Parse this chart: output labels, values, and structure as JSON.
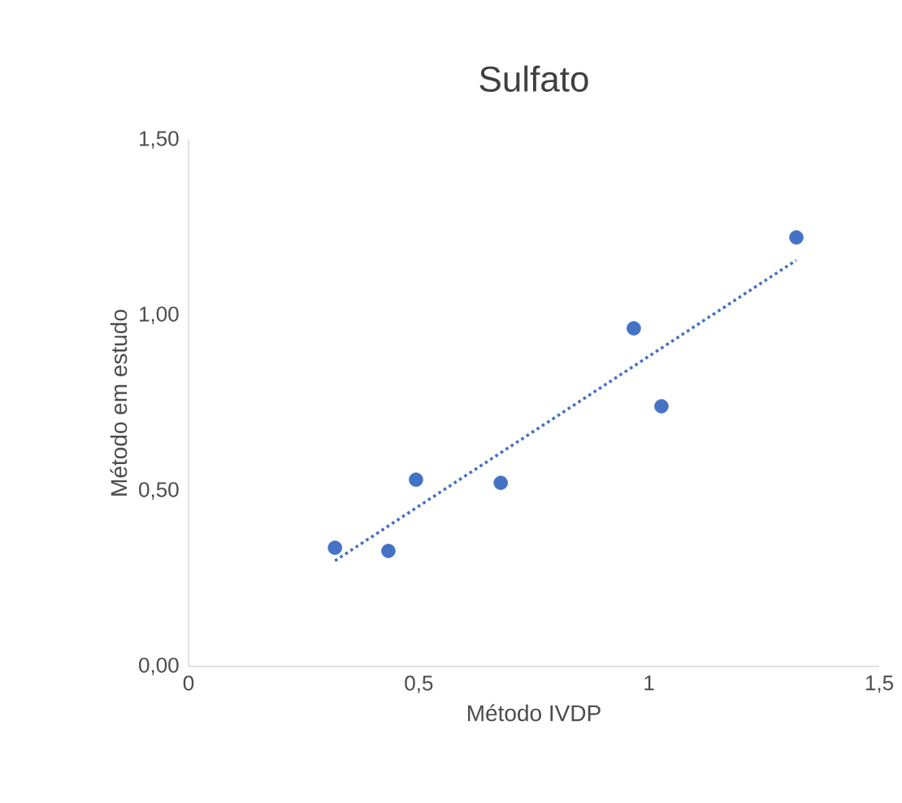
{
  "chart_data": {
    "type": "scatter",
    "title": "Sulfato",
    "xlabel": "Método IVDP",
    "ylabel": "Método em estudo",
    "xlim": [
      0,
      1.5
    ],
    "ylim": [
      0,
      1.5
    ],
    "xticks": [
      0,
      {
        "value": 0.5,
        "label": "0,5"
      },
      1,
      {
        "value": 1.5,
        "label": "1,5"
      }
    ],
    "yticks": [
      {
        "value": 0,
        "label": "0,00"
      },
      {
        "value": 0.5,
        "label": "0,50"
      },
      {
        "value": 1,
        "label": "1,00"
      },
      {
        "value": 1.5,
        "label": "1,50"
      }
    ],
    "grid": false,
    "marker": "circle",
    "series": [
      {
        "color": "#4472c4",
        "x": [
          0.318,
          0.434,
          0.494,
          0.678,
          0.967,
          1.027,
          1.32
        ],
        "values": [
          0.338,
          0.329,
          0.532,
          0.523,
          0.963,
          0.741,
          1.222
        ]
      },
      {
        "type": "line",
        "color": "#4472c4",
        "line_style": "dotted",
        "marker": "none",
        "x": [
          0.318,
          1.32
        ],
        "values": [
          0.301,
          1.157
        ]
      }
    ]
  }
}
